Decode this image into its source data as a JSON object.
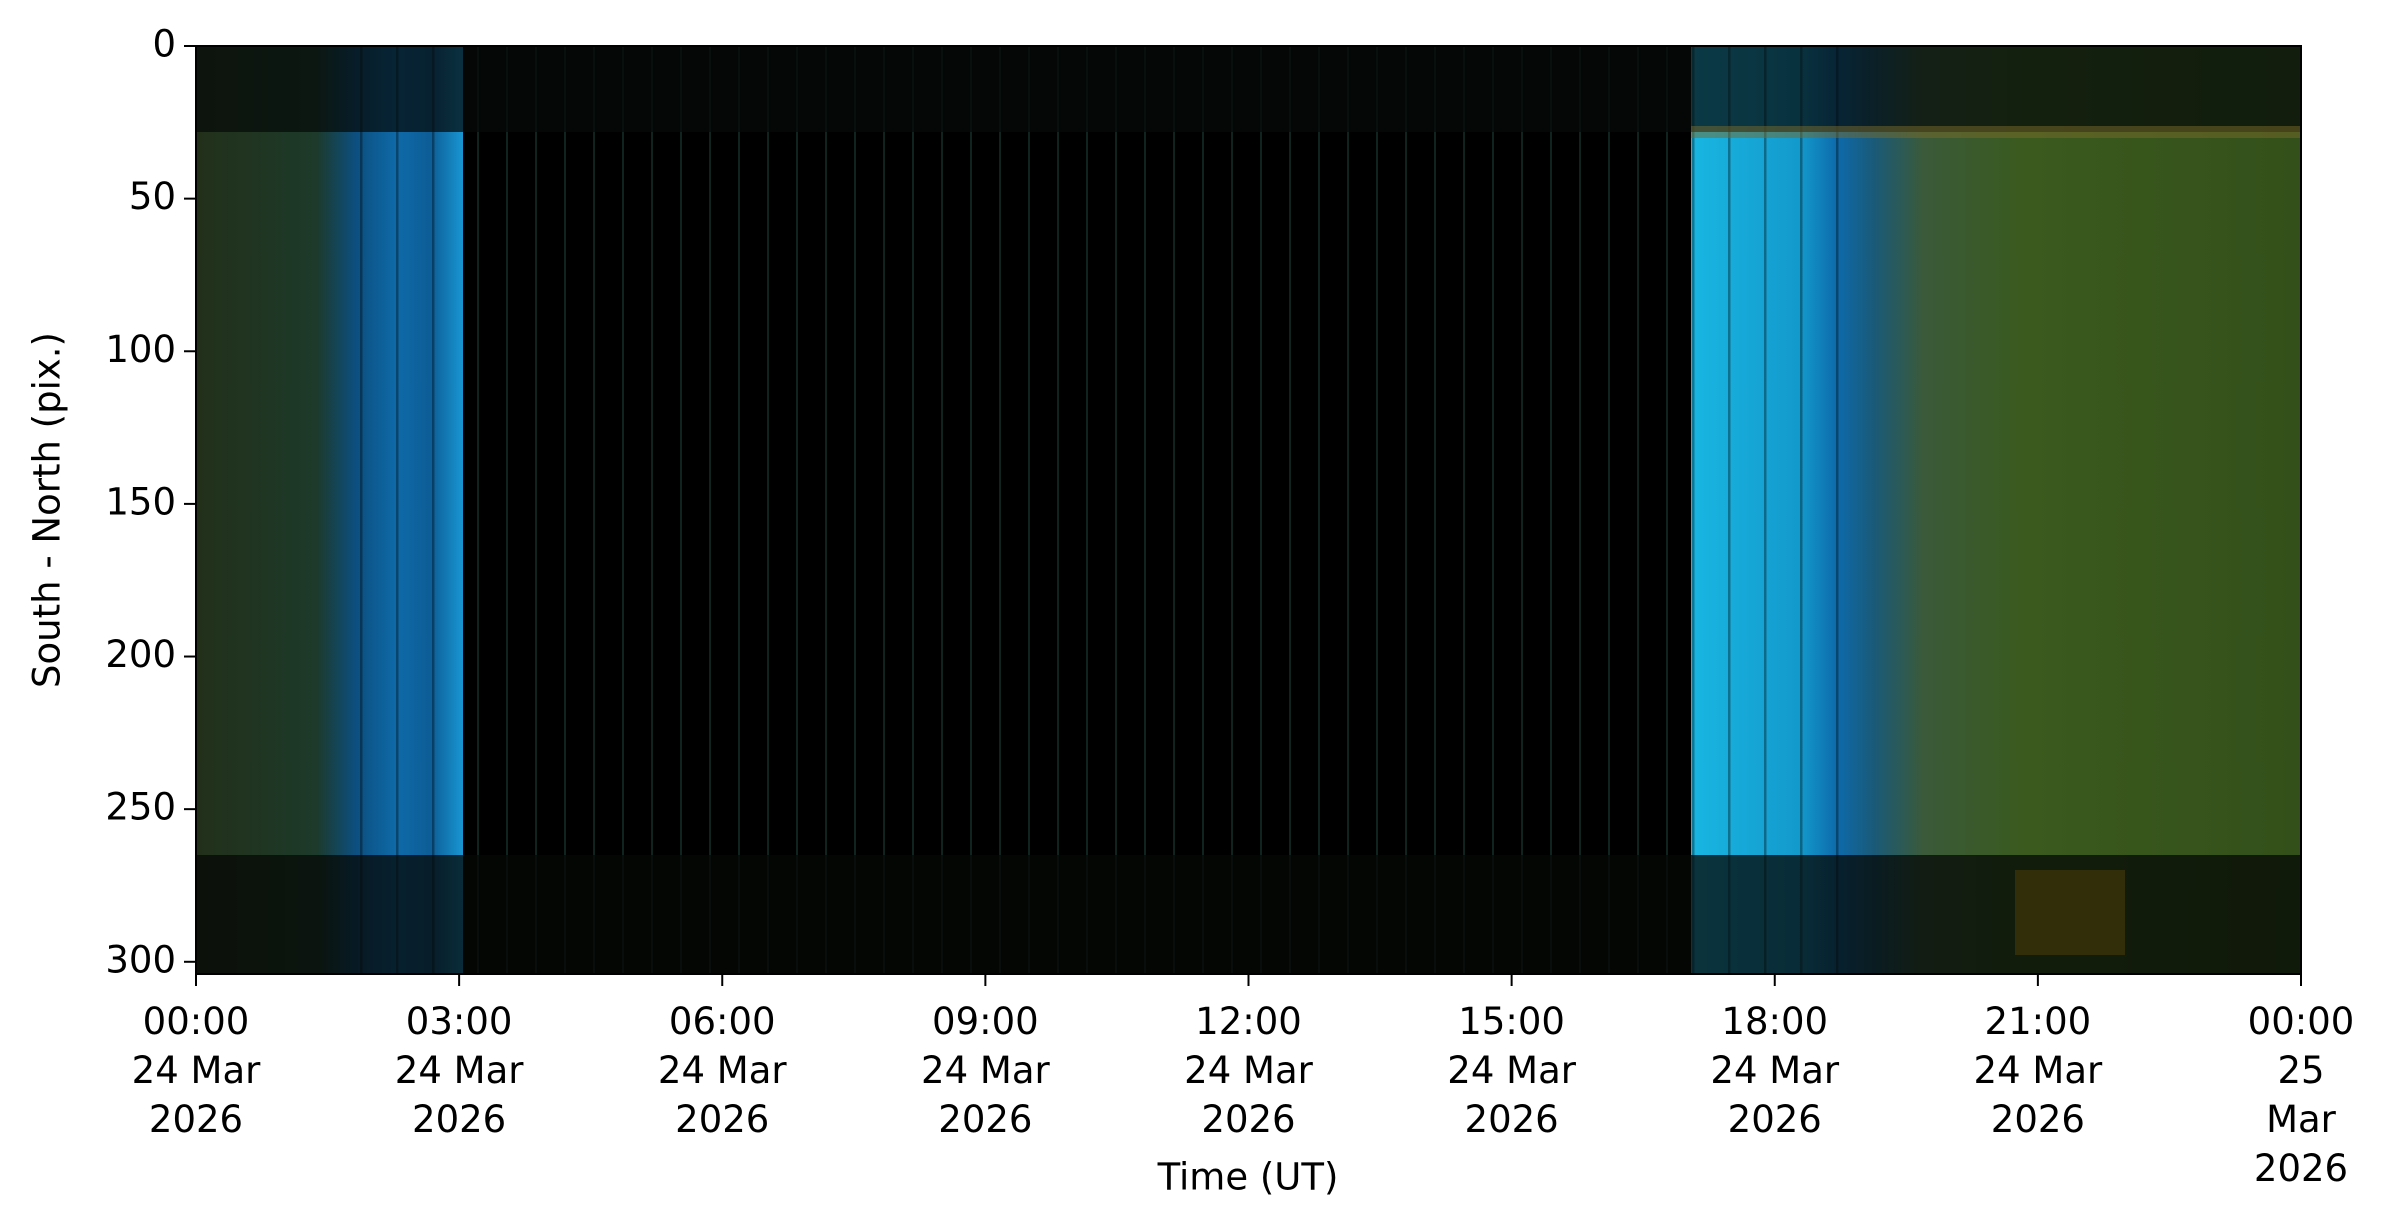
{
  "chart_data": {
    "type": "image",
    "xlabel": "Time (UT)",
    "ylabel": "South - North (pix.)",
    "xlim": [
      "2026-03-24T00:00",
      "2026-03-25T00:00"
    ],
    "xticks": [
      {
        "value": "2026-03-24T00:00",
        "label": "00:00\n24 Mar\n2026"
      },
      {
        "value": "2026-03-24T03:00",
        "label": "03:00\n24 Mar\n2026"
      },
      {
        "value": "2026-03-24T06:00",
        "label": "06:00\n24 Mar\n2026"
      },
      {
        "value": "2026-03-24T09:00",
        "label": "09:00\n24 Mar\n2026"
      },
      {
        "value": "2026-03-24T12:00",
        "label": "12:00\n24 Mar\n2026"
      },
      {
        "value": "2026-03-24T15:00",
        "label": "15:00\n24 Mar\n2026"
      },
      {
        "value": "2026-03-24T18:00",
        "label": "18:00\n24 Mar\n2026"
      },
      {
        "value": "2026-03-24T21:00",
        "label": "21:00\n24 Mar\n2026"
      },
      {
        "value": "2026-03-25T00:00",
        "label": "00:00\n25 Mar\n2026"
      }
    ],
    "ylim": [
      304,
      0
    ],
    "yticks": [
      0,
      50,
      100,
      150,
      200,
      250,
      300
    ]
  }
}
